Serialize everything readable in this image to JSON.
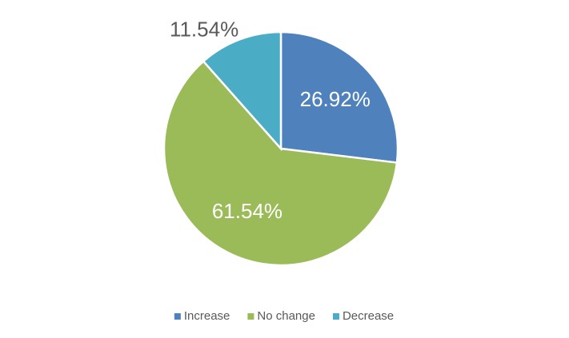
{
  "chart_data": {
    "type": "pie",
    "categories": [
      "Increase",
      "No change",
      "Decrease"
    ],
    "values": [
      26.92,
      61.54,
      11.54
    ],
    "value_labels": [
      "26.92%",
      "61.54%",
      "11.54%"
    ],
    "colors": [
      "#4f81bd",
      "#9bbb59",
      "#4bacc6"
    ],
    "legend": "bottom"
  }
}
